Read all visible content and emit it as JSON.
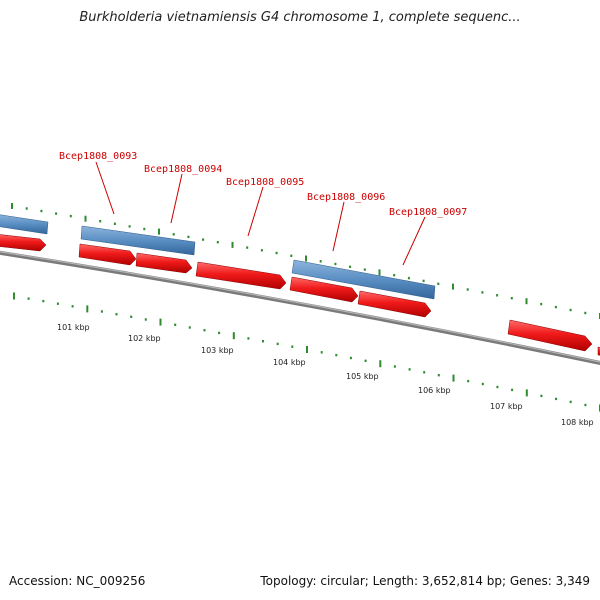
{
  "title": "Burkholderia vietnamiensis G4 chromosome 1, complete sequenc...",
  "footer": {
    "accession": "Accession: NC_009256",
    "summary": "Topology: circular; Length: 3,652,814 bp; Genes: 3,349"
  },
  "colors": {
    "forward_gene": "#e8141a",
    "reverse_gene": "#4a7fb5",
    "label": "#cc0000",
    "backbone": "#777777",
    "tick": "#2e8b2e"
  },
  "scale_labels": [
    "101 kbp",
    "102 kbp",
    "103 kbp",
    "104 kbp",
    "105 kbp",
    "106 kbp",
    "107 kbp",
    "108 kbp"
  ],
  "gene_labels": [
    "Bcep1808_0093",
    "Bcep1808_0094",
    "Bcep1808_0095",
    "Bcep1808_0096",
    "Bcep1808_0097"
  ]
}
